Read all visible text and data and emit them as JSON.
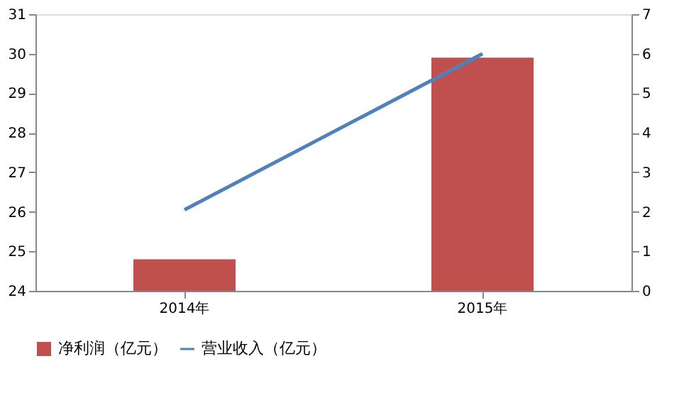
{
  "chart_data": {
    "type": "bar",
    "categories": [
      "2014年",
      "2015年"
    ],
    "series": [
      {
        "name": "净利润（亿元）",
        "color": "#c0504d",
        "values": [
          24.8,
          29.9
        ]
      },
      {
        "name": "营业收入（亿元）",
        "color": "#4f81bd",
        "values": [
          2.05,
          6.0
        ],
        "type": "line",
        "axis": "y2"
      }
    ],
    "ylim": [
      24,
      31
    ],
    "yticks": [
      24,
      25,
      26,
      27,
      28,
      29,
      30,
      31
    ],
    "y2lim": [
      0,
      7
    ],
    "y2ticks": [
      0,
      1,
      2,
      3,
      4,
      5,
      6,
      7
    ],
    "grid": false,
    "legend": "bottom",
    "marker": "none",
    "line_style": "solid"
  }
}
